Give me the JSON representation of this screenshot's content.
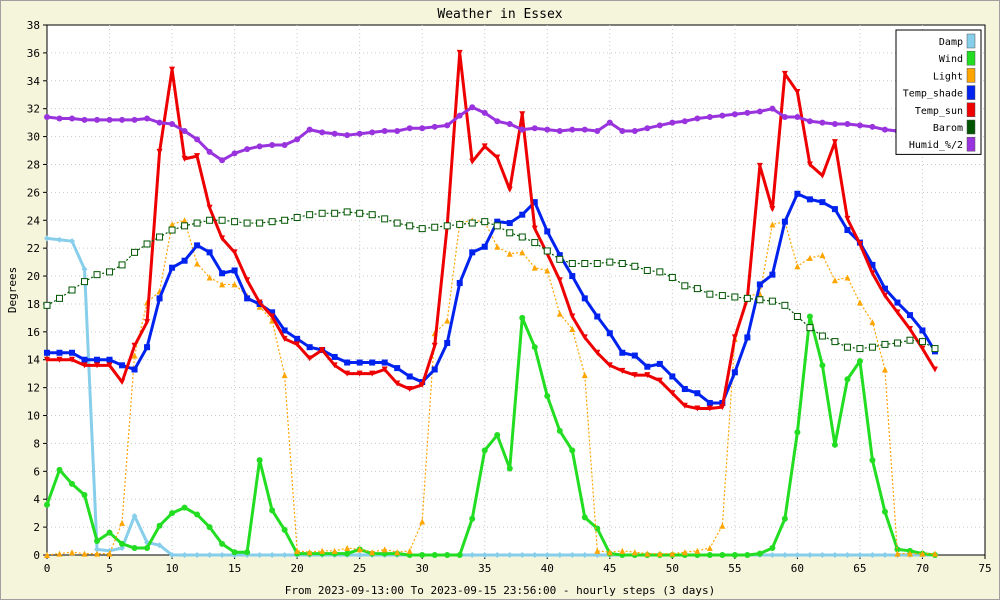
{
  "chart_data": {
    "type": "line",
    "title": "Weather in Essex",
    "xlabel": "From 2023-09-13:00 To 2023-09-15 23:56:00 - hourly steps (3 days)",
    "ylabel": "Degrees",
    "xlim": [
      0,
      75
    ],
    "ylim": [
      0,
      38
    ],
    "xticks": [
      0,
      5,
      10,
      15,
      20,
      25,
      30,
      35,
      40,
      45,
      50,
      55,
      60,
      65,
      70,
      75
    ],
    "yticks": [
      0,
      2,
      4,
      6,
      8,
      10,
      12,
      14,
      16,
      18,
      20,
      22,
      24,
      26,
      28,
      30,
      32,
      34,
      36,
      38
    ],
    "grid": true,
    "legend_position": "top-right",
    "series": [
      {
        "name": "Damp",
        "color": "#87ceeb",
        "marker": "diamond",
        "dash": "solid",
        "values": [
          22.7,
          22.6,
          22.5,
          20.5,
          0.4,
          0.3,
          0.5,
          2.8,
          0.9,
          0.7,
          0,
          0,
          0,
          0,
          0,
          0,
          0,
          0,
          0,
          0,
          0,
          0,
          0,
          0,
          0,
          0,
          0,
          0,
          0,
          0,
          0,
          0,
          0,
          0,
          0,
          0,
          0,
          0,
          0,
          0,
          0,
          0,
          0,
          0,
          0,
          0,
          0,
          0,
          0,
          0,
          0,
          0,
          0,
          0,
          0,
          0,
          0,
          0,
          0,
          0,
          0,
          0,
          0,
          0,
          0,
          0,
          0,
          0,
          0,
          0,
          0,
          0
        ]
      },
      {
        "name": "Wind",
        "color": "#22dd22",
        "marker": "dot",
        "dash": "solid",
        "values": [
          3.6,
          6.1,
          5.1,
          4.3,
          1.0,
          1.6,
          0.8,
          0.5,
          0.5,
          2.1,
          3.0,
          3.4,
          2.9,
          2.0,
          0.8,
          0.2,
          0.2,
          6.8,
          3.2,
          1.8,
          0.1,
          0.1,
          0.1,
          0.1,
          0.1,
          0.4,
          0.1,
          0.1,
          0.1,
          0,
          0,
          0,
          0,
          0,
          2.6,
          7.5,
          8.6,
          6.2,
          17.0,
          14.9,
          11.4,
          8.9,
          7.5,
          2.7,
          1.9,
          0.1,
          0,
          0,
          0,
          0,
          0,
          0,
          0,
          0,
          0,
          0,
          0,
          0.1,
          0.5,
          2.6,
          8.8,
          17.1,
          13.6,
          7.9,
          12.6,
          13.9,
          6.8,
          3.1,
          0.4,
          0.3,
          0.1,
          0
        ]
      },
      {
        "name": "Light",
        "color": "#ffa500",
        "marker": "triangle",
        "dash": "dot",
        "values": [
          0,
          0.1,
          0.2,
          0.1,
          0.1,
          0.1,
          2.3,
          14.3,
          18.1,
          18.9,
          23.7,
          24.0,
          20.9,
          19.9,
          19.4,
          19.4,
          18.6,
          17.8,
          16.8,
          12.9,
          0.3,
          0.2,
          0.3,
          0.3,
          0.5,
          0.4,
          0.2,
          0.4,
          0.2,
          0.3,
          2.4,
          15.9,
          16.8,
          23.8,
          24.0,
          23.9,
          22.1,
          21.6,
          21.7,
          20.6,
          20.4,
          17.3,
          16.2,
          12.9,
          0.3,
          0.2,
          0.3,
          0.2,
          0.1,
          0.1,
          0.1,
          0.2,
          0.3,
          0.5,
          2.1,
          15.5,
          18.6,
          18.7,
          23.7,
          23.9,
          20.7,
          21.3,
          21.5,
          19.7,
          19.9,
          18.1,
          16.7,
          13.3,
          0.1,
          0.1,
          0.1,
          0.1
        ]
      },
      {
        "name": "Temp_shade",
        "color": "#0022ee",
        "marker": "square",
        "dash": "solid",
        "values": [
          14.5,
          14.5,
          14.5,
          14.0,
          14.0,
          14.0,
          13.6,
          13.3,
          14.9,
          18.4,
          20.6,
          21.1,
          22.2,
          21.7,
          20.2,
          20.4,
          18.4,
          18.0,
          17.4,
          16.1,
          15.5,
          14.9,
          14.7,
          14.2,
          13.8,
          13.8,
          13.8,
          13.8,
          13.4,
          12.8,
          12.4,
          13.3,
          15.2,
          19.5,
          21.7,
          22.1,
          23.9,
          23.8,
          24.4,
          25.3,
          23.2,
          21.5,
          20.0,
          18.4,
          17.1,
          15.9,
          14.5,
          14.3,
          13.5,
          13.7,
          12.8,
          11.9,
          11.6,
          10.9,
          10.9,
          13.1,
          15.6,
          19.4,
          20.1,
          23.9,
          25.9,
          25.5,
          25.3,
          24.8,
          23.3,
          22.4,
          20.8,
          19.1,
          18.1,
          17.2,
          16.1,
          14.6
        ]
      },
      {
        "name": "Temp_sun",
        "color": "#ee0000",
        "marker": "inv-triangle",
        "dash": "solid",
        "values": [
          14.0,
          14.0,
          14.0,
          13.6,
          13.6,
          13.6,
          12.4,
          15.0,
          16.7,
          28.9,
          34.8,
          28.4,
          28.6,
          24.9,
          22.7,
          21.7,
          19.7,
          18.1,
          17.1,
          15.5,
          15.1,
          14.1,
          14.7,
          13.6,
          13.0,
          13.0,
          13.0,
          13.3,
          12.3,
          11.9,
          12.2,
          15.0,
          23.6,
          36.0,
          28.2,
          29.3,
          28.5,
          26.2,
          31.6,
          23.4,
          21.6,
          19.7,
          17.1,
          15.6,
          14.5,
          13.6,
          13.2,
          12.9,
          12.9,
          12.5,
          11.6,
          10.7,
          10.5,
          10.5,
          10.6,
          15.6,
          18.4,
          27.9,
          24.8,
          34.5,
          33.2,
          28.0,
          27.2,
          29.6,
          24.1,
          22.3,
          20.2,
          18.6,
          17.4,
          16.2,
          14.8,
          13.3
        ]
      },
      {
        "name": "Barom",
        "color": "#005500",
        "marker": "square-open",
        "dash": "dot",
        "values": [
          17.9,
          18.4,
          19.0,
          19.6,
          20.1,
          20.3,
          20.8,
          21.7,
          22.3,
          22.8,
          23.3,
          23.6,
          23.8,
          24.0,
          24.0,
          23.9,
          23.8,
          23.8,
          23.9,
          24.0,
          24.2,
          24.4,
          24.5,
          24.5,
          24.6,
          24.5,
          24.4,
          24.1,
          23.8,
          23.6,
          23.4,
          23.5,
          23.6,
          23.7,
          23.8,
          23.9,
          23.6,
          23.1,
          22.8,
          22.4,
          21.8,
          21.2,
          20.9,
          20.9,
          20.9,
          21.0,
          20.9,
          20.7,
          20.4,
          20.3,
          19.9,
          19.3,
          19.1,
          18.7,
          18.6,
          18.5,
          18.4,
          18.3,
          18.2,
          17.9,
          17.1,
          16.3,
          15.7,
          15.3,
          14.9,
          14.8,
          14.9,
          15.1,
          15.2,
          15.4,
          15.3,
          14.8
        ]
      },
      {
        "name": "Humid_%/2",
        "color": "#9933dd",
        "marker": "dot",
        "dash": "solid",
        "values": [
          31.4,
          31.3,
          31.3,
          31.2,
          31.2,
          31.2,
          31.2,
          31.2,
          31.3,
          31.0,
          30.9,
          30.4,
          29.8,
          28.9,
          28.3,
          28.8,
          29.1,
          29.3,
          29.4,
          29.4,
          29.8,
          30.5,
          30.3,
          30.2,
          30.1,
          30.2,
          30.3,
          30.4,
          30.4,
          30.6,
          30.6,
          30.7,
          30.8,
          31.5,
          32.1,
          31.7,
          31.1,
          30.9,
          30.5,
          30.6,
          30.5,
          30.4,
          30.5,
          30.5,
          30.4,
          31.0,
          30.4,
          30.4,
          30.6,
          30.8,
          31.0,
          31.1,
          31.3,
          31.4,
          31.5,
          31.6,
          31.7,
          31.8,
          32.0,
          31.4,
          31.4,
          31.1,
          31.0,
          30.9,
          30.9,
          30.8,
          30.7,
          30.5,
          30.4,
          30.4,
          30.3,
          30.2
        ]
      }
    ]
  }
}
